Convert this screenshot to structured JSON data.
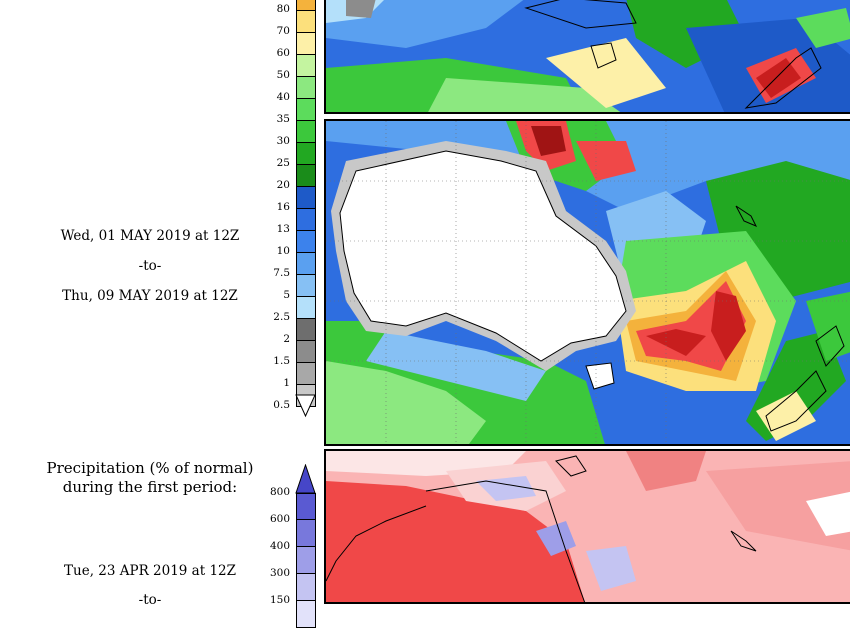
{
  "period2": {
    "start": "Wed, 01 MAY 2019 at 12Z",
    "sep": "-to-",
    "end": "Thu, 09 MAY 2019 at 12Z"
  },
  "period1": {
    "title_line1": "Precipitation (% of normal)",
    "title_line2": "during the first period:",
    "start": "Tue, 23 APR 2019 at 12Z",
    "sep": "-to-"
  },
  "precip_colorbar": {
    "labels": [
      "80",
      "70",
      "60",
      "50",
      "40",
      "35",
      "30",
      "25",
      "20",
      "16",
      "13",
      "10",
      "7.5",
      "5",
      "2.5",
      "2",
      "1.5",
      "1",
      "0.5"
    ],
    "colors": [
      "#f4b23c",
      "#fce07c",
      "#fdf0a8",
      "#c4f4a0",
      "#8ce880",
      "#5cdc5c",
      "#3cc83c",
      "#22a822",
      "#1a8c1a",
      "#1e5ac8",
      "#2e6ee0",
      "#3c82ec",
      "#5aa0f0",
      "#86c0f4",
      "#b4e0fa",
      "#6e6e6e",
      "#8c8c8c",
      "#a8a8a8",
      "#c8c8c8"
    ]
  },
  "pct_colorbar": {
    "labels": [
      "800",
      "600",
      "400",
      "300",
      "150"
    ],
    "colors": [
      "#5a5ad2",
      "#7878dc",
      "#9e9ee8",
      "#c4c4f2",
      "#e2e2fa"
    ]
  },
  "colors": {
    "ocean_blue": "#2e6ee0",
    "land_white": "#ffffff",
    "deficit_red": "#f04848"
  }
}
